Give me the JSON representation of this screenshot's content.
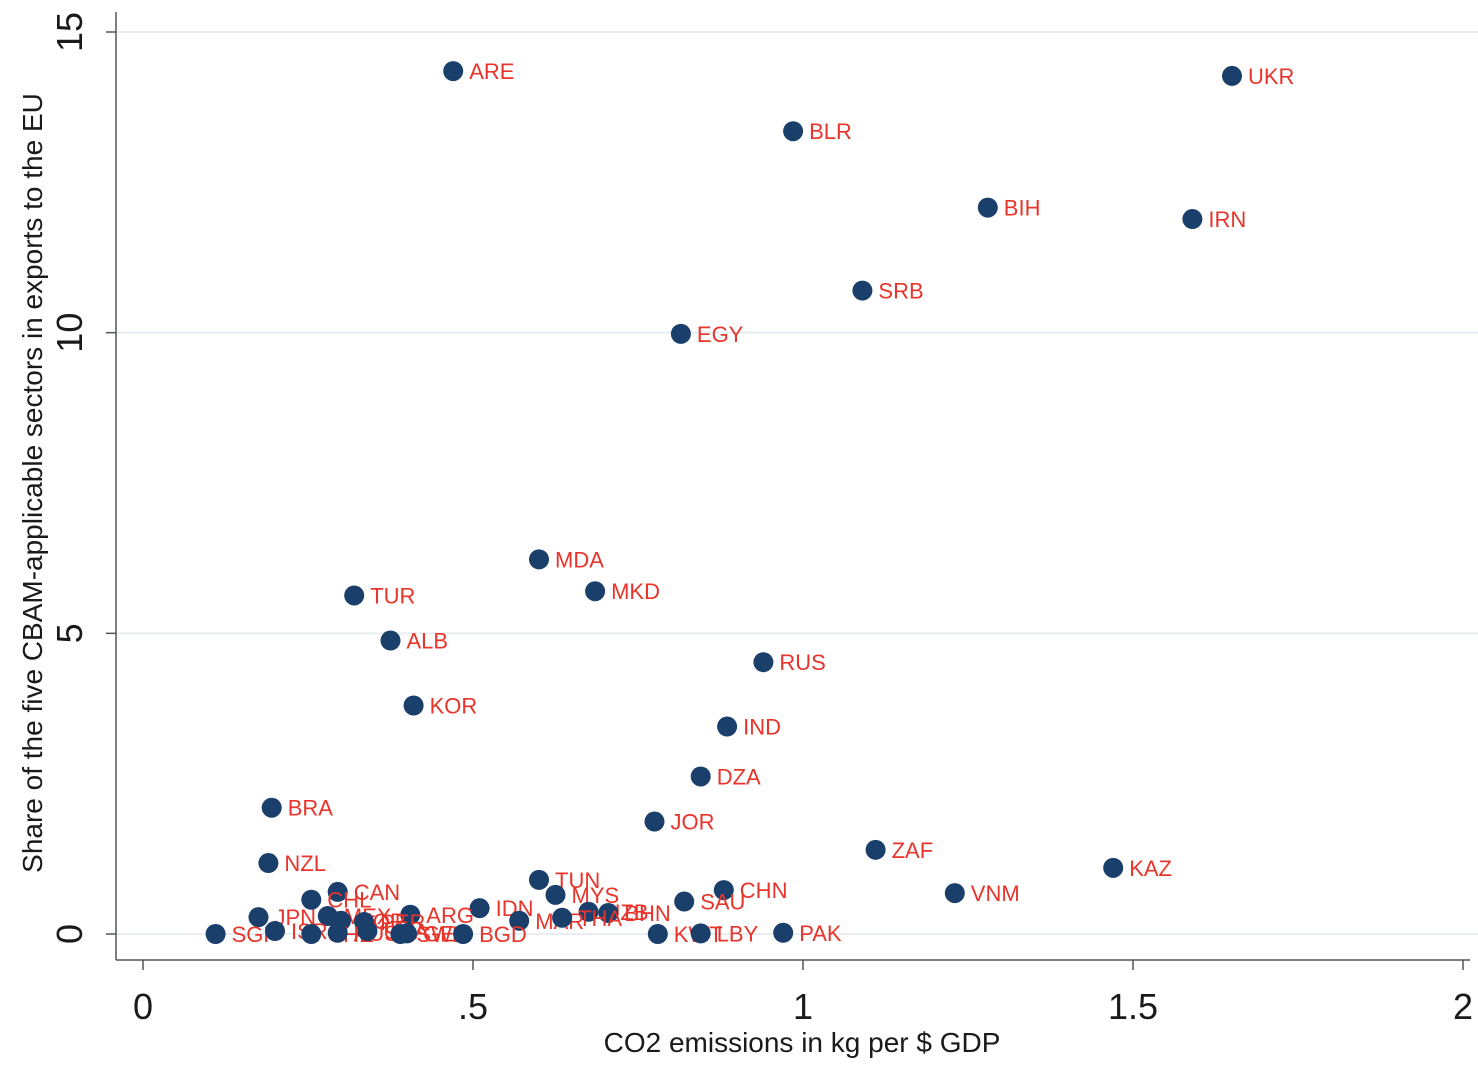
{
  "chart_data": {
    "type": "scatter",
    "title": "",
    "xlabel": "CO2 emissions in kg per $ GDP",
    "ylabel": "Share of the five CBAM-applicable sectors in exports to the EU",
    "xlim": [
      0,
      2
    ],
    "ylim": [
      0,
      15
    ],
    "xticks": [
      0,
      0.5,
      1,
      1.5,
      2
    ],
    "xtick_labels": [
      "0",
      ".5",
      "1",
      "1.5",
      "2"
    ],
    "yticks": [
      0,
      5,
      10,
      15
    ],
    "ytick_labels": [
      "0",
      "5",
      "10",
      "15"
    ],
    "grid": "horizontal",
    "legend": "none",
    "marker_color": "#1b3f6b",
    "label_color": "#e8342b",
    "grid_color": "#e8eef2",
    "points": [
      {
        "label": "ARE",
        "x": 0.47,
        "y": 14.35
      },
      {
        "label": "UKR",
        "x": 1.65,
        "y": 14.27
      },
      {
        "label": "BLR",
        "x": 0.985,
        "y": 13.35
      },
      {
        "label": "BIH",
        "x": 1.28,
        "y": 12.08
      },
      {
        "label": "IRN",
        "x": 1.59,
        "y": 11.89
      },
      {
        "label": "SRB",
        "x": 1.09,
        "y": 10.7
      },
      {
        "label": "EGY",
        "x": 0.815,
        "y": 9.98
      },
      {
        "label": "MDA",
        "x": 0.6,
        "y": 6.23
      },
      {
        "label": "TUR",
        "x": 0.32,
        "y": 5.63
      },
      {
        "label": "MKD",
        "x": 0.685,
        "y": 5.7
      },
      {
        "label": "ALB",
        "x": 0.375,
        "y": 4.88
      },
      {
        "label": "RUS",
        "x": 0.94,
        "y": 4.52
      },
      {
        "label": "KOR",
        "x": 0.41,
        "y": 3.8
      },
      {
        "label": "IND",
        "x": 0.885,
        "y": 3.45
      },
      {
        "label": "DZA",
        "x": 0.845,
        "y": 2.62
      },
      {
        "label": "BRA",
        "x": 0.195,
        "y": 2.1
      },
      {
        "label": "JOR",
        "x": 0.775,
        "y": 1.87
      },
      {
        "label": "ZAF",
        "x": 1.11,
        "y": 1.4
      },
      {
        "label": "NZL",
        "x": 0.19,
        "y": 1.18
      },
      {
        "label": "KAZ",
        "x": 1.47,
        "y": 1.1
      },
      {
        "label": "TUN",
        "x": 0.6,
        "y": 0.9
      },
      {
        "label": "VNM",
        "x": 1.23,
        "y": 0.68
      },
      {
        "label": "CHN",
        "x": 0.88,
        "y": 0.73
      },
      {
        "label": "CAN",
        "x": 0.295,
        "y": 0.7
      },
      {
        "label": "MYS",
        "x": 0.625,
        "y": 0.65
      },
      {
        "label": "CHL",
        "x": 0.255,
        "y": 0.57
      },
      {
        "label": "SAU",
        "x": 0.82,
        "y": 0.54
      },
      {
        "label": "IDN",
        "x": 0.51,
        "y": 0.43
      },
      {
        "label": "ARG",
        "x": 0.405,
        "y": 0.32
      },
      {
        "label": "UZB",
        "x": 0.675,
        "y": 0.37
      },
      {
        "label": "BHN",
        "x": 0.705,
        "y": 0.35
      },
      {
        "label": "JPN",
        "x": 0.175,
        "y": 0.28
      },
      {
        "label": "MEX",
        "x": 0.28,
        "y": 0.3
      },
      {
        "label": "NOR",
        "x": 0.3,
        "y": 0.22
      },
      {
        "label": "PER",
        "x": 0.335,
        "y": 0.2
      },
      {
        "label": "MAR",
        "x": 0.57,
        "y": 0.22
      },
      {
        "label": "THA",
        "x": 0.635,
        "y": 0.27
      },
      {
        "label": "SGP",
        "x": 0.11,
        "y": 0.0
      },
      {
        "label": "ISR",
        "x": 0.2,
        "y": 0.05
      },
      {
        "label": "CHE",
        "x": 0.255,
        "y": 0.0
      },
      {
        "label": "AUS",
        "x": 0.295,
        "y": 0.02
      },
      {
        "label": "USA",
        "x": 0.34,
        "y": 0.05
      },
      {
        "label": "SWE",
        "x": 0.39,
        "y": 0.0
      },
      {
        "label": "GEO",
        "x": 0.4,
        "y": 0.01
      },
      {
        "label": "BGD",
        "x": 0.485,
        "y": 0.0
      },
      {
        "label": "KWT",
        "x": 0.78,
        "y": 0.0
      },
      {
        "label": "LBY",
        "x": 0.845,
        "y": 0.01
      },
      {
        "label": "PAK",
        "x": 0.97,
        "y": 0.02
      }
    ]
  }
}
